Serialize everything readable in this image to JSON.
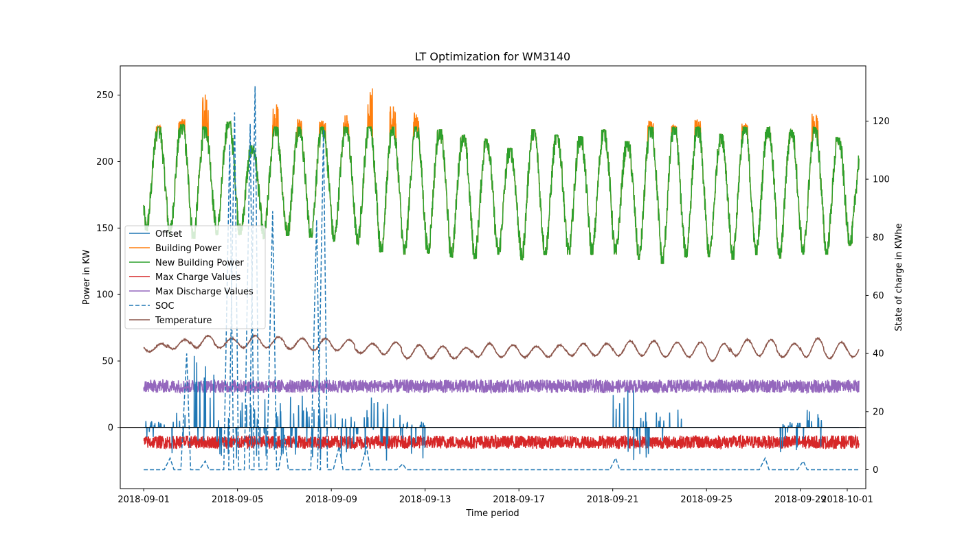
{
  "chart_data": {
    "type": "line",
    "title": "LT Optimization for WM3140",
    "xlabel": "Time period",
    "ylabel": "Power in KW",
    "y2label": "State of charge in KWhe",
    "x_tick_labels": [
      "2018-09-01",
      "2018-09-05",
      "2018-09-09",
      "2018-09-13",
      "2018-09-17",
      "2018-09-21",
      "2018-09-25",
      "2018-09-29",
      "2018-10-01"
    ],
    "y_ticks": [
      0,
      50,
      100,
      150,
      200,
      250
    ],
    "y2_ticks": [
      0,
      20,
      40,
      60,
      80,
      100,
      120
    ],
    "xlim": [
      "2018-08-31T00:00",
      "2018-10-01T19:00"
    ],
    "ylim": [
      -46,
      272
    ],
    "y2lim": [
      -6.5,
      139
    ],
    "data_range": [
      "2018-09-01T00:00",
      "2018-10-01T12:00"
    ],
    "reference_line_y": 0,
    "grid": false,
    "legend_placement": "center-left",
    "series": [
      {
        "name": "Offset",
        "color": "#1f77b4",
        "style": "solid",
        "axis": "left",
        "daily_peak_kw": [
          5,
          12,
          57,
          8,
          20,
          23,
          24,
          16,
          13,
          23,
          18,
          5,
          0,
          0,
          0,
          0,
          0,
          0,
          0,
          0,
          30,
          12,
          14,
          0,
          0,
          0,
          0,
          4,
          15,
          0,
          0
        ]
      },
      {
        "name": "Building Power",
        "color": "#ff7f0e",
        "style": "solid",
        "axis": "left",
        "daily_max_kw": [
          227,
          232,
          257,
          230,
          212,
          244,
          238,
          231,
          235,
          258,
          242,
          238,
          224,
          220,
          217,
          210,
          224,
          220,
          219,
          224,
          215,
          231,
          227,
          232,
          221,
          229,
          226,
          224,
          236,
          218,
          211
        ]
      },
      {
        "name": "New Building Power",
        "color": "#2ca02c",
        "style": "solid",
        "axis": "left",
        "daily_max_kw": [
          226,
          228,
          226,
          230,
          212,
          226,
          226,
          226,
          226,
          226,
          226,
          226,
          224,
          220,
          217,
          210,
          224,
          220,
          219,
          224,
          215,
          226,
          226,
          226,
          221,
          226,
          226,
          224,
          226,
          218,
          211
        ],
        "daily_min_kw": [
          148,
          145,
          142,
          145,
          145,
          142,
          144,
          143,
          140,
          138,
          132,
          130,
          131,
          128,
          127,
          130,
          126,
          130,
          130,
          130,
          130,
          126,
          123,
          128,
          128,
          126,
          130,
          127,
          130,
          130,
          137
        ]
      },
      {
        "name": "Max Charge Values",
        "color": "#d62728",
        "style": "solid",
        "axis": "left",
        "mean_kw": -11
      },
      {
        "name": "Max Discharge Values",
        "color": "#9467bd",
        "style": "solid",
        "axis": "left",
        "mean_kw": 31
      },
      {
        "name": "SOC",
        "color": "#1f77b4",
        "style": "dashed",
        "axis": "right",
        "unit": "KWhe",
        "peaks": [
          {
            "x": "2018-09-02T03:00",
            "y": 4
          },
          {
            "x": "2018-09-02T20:00",
            "y": 40
          },
          {
            "x": "2018-09-03T15:00",
            "y": 3
          },
          {
            "x": "2018-09-04T16:00",
            "y": 112
          },
          {
            "x": "2018-09-04T21:00",
            "y": 123
          },
          {
            "x": "2018-09-05T13:00",
            "y": 119
          },
          {
            "x": "2018-09-05T18:00",
            "y": 132
          },
          {
            "x": "2018-09-06T12:00",
            "y": 89
          },
          {
            "x": "2018-09-07T00:00",
            "y": 12
          },
          {
            "x": "2018-09-08T09:00",
            "y": 86
          },
          {
            "x": "2018-09-08T16:00",
            "y": 117
          },
          {
            "x": "2018-09-09T08:00",
            "y": 8
          },
          {
            "x": "2018-09-10T12:00",
            "y": 8
          },
          {
            "x": "2018-09-12T01:00",
            "y": 2
          },
          {
            "x": "2018-09-21T03:00",
            "y": 4
          },
          {
            "x": "2018-09-27T12:00",
            "y": 4
          },
          {
            "x": "2018-09-29T03:00",
            "y": 3
          }
        ]
      },
      {
        "name": "Temperature",
        "color": "#8c564b",
        "style": "solid",
        "axis": "left",
        "daily_max": [
          63,
          66,
          69,
          67,
          69,
          68,
          67,
          67,
          66,
          63,
          64,
          62,
          61,
          60,
          63,
          62,
          61,
          62,
          63,
          63,
          65,
          65,
          64,
          64,
          63,
          66,
          66,
          63,
          67,
          64,
          64
        ],
        "daily_min": [
          57,
          59,
          60,
          60,
          60,
          60,
          59,
          58,
          58,
          56,
          55,
          52,
          52,
          52,
          53,
          53,
          53,
          53,
          54,
          54,
          54,
          54,
          53,
          53,
          50,
          54,
          54,
          53,
          53,
          52,
          53
        ]
      }
    ]
  }
}
